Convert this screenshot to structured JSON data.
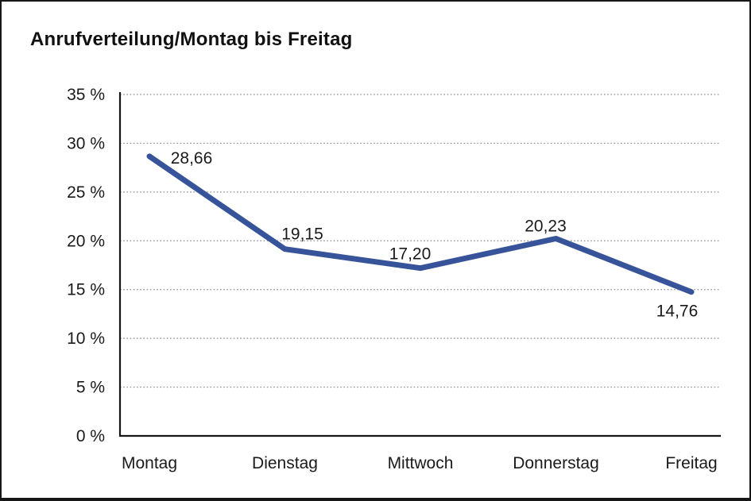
{
  "title": "Anrufverteilung/Montag bis Freitag",
  "chart_data": {
    "type": "line",
    "title": "Anrufverteilung/Montag bis Freitag",
    "categories": [
      "Montag",
      "Dienstag",
      "Mittwoch",
      "Donnerstag",
      "Freitag"
    ],
    "values": [
      28.66,
      19.15,
      17.2,
      20.23,
      14.76
    ],
    "value_labels": [
      "28,66",
      "19,15",
      "17,20",
      "20,23",
      "14,76"
    ],
    "xlabel": "",
    "ylabel": "",
    "ylim": [
      0,
      35
    ],
    "ytick_step": 5,
    "ytick_labels": [
      "0 %",
      "5 %",
      "10 %",
      "15 %",
      "20 %",
      "25 %",
      "30 %",
      "35 %"
    ],
    "grid": "horizontal-dotted",
    "legend_position": "none",
    "line_color": "#37549B"
  },
  "colors": {
    "line": "#37549B",
    "grid": "#8a8a8a",
    "axis": "#161616",
    "text": "#1a1a1a",
    "background": "#ffffff",
    "border": "#161616"
  }
}
